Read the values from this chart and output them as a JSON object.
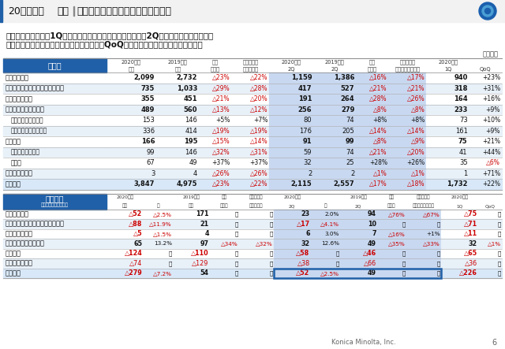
{
  "title_period": "20年度上期",
  "title_section": "業績",
  "title_sep": "｜",
  "title_topic": "事業セグメント別売上高と営業利益",
  "subtitle1": "産業用材料・機器は1Qに続き黒字、オフィスとヘルスケアは2Q黒字化。プロフェッショ",
  "subtitle2": "ナルプリントは想定通りオフィスより遅れもQoQで大幅改善。新規事業も赤字縮小。",
  "unit_label": "（億円）",
  "header_bg": "#2060a8",
  "alt_row_bg": "#e8f0f8",
  "white_row_bg": "#ffffff",
  "highlight_color": "#c8d8f0",
  "total_row_bg": "#d8e8f8",
  "sales_header": "売上高",
  "profit_header": "営業利益",
  "profit_subheader": "（右行：営業利益率）",
  "sales_col_headers_row1": [
    "2020年度",
    "2019年度",
    "前年",
    "為替影響を",
    "2020年度",
    "2019年度",
    "前年",
    "為替影響を",
    "2020年度",
    ""
  ],
  "sales_col_headers_row2": [
    "上期",
    "上期",
    "同期比",
    "除く前期比",
    "2Q",
    "2Q",
    "同期比",
    "除く前期年同期比",
    "1Q",
    "QoQ"
  ],
  "sales_row_labels": [
    "オフィス事業",
    "プロフェッショナルプリント事業",
    "ヘルスケア事業",
    "産業用材料・機器事業",
    "産業用光学システム",
    "材料・コンポーネント",
    "新規事業",
    "バイオヘルスケア",
    "その他",
    "コーポレート他",
    "全社合計"
  ],
  "sales_row_indent": [
    false,
    false,
    false,
    false,
    true,
    true,
    false,
    true,
    true,
    false,
    false
  ],
  "sales_row_bold": [
    true,
    true,
    true,
    true,
    false,
    false,
    true,
    false,
    false,
    false,
    true
  ],
  "sales_data": [
    [
      "2,099",
      "2,732",
      "△23%",
      "△22%",
      "1,159",
      "1,386",
      "△16%",
      "△17%",
      "940",
      "+23%"
    ],
    [
      "735",
      "1,033",
      "△29%",
      "△28%",
      "417",
      "527",
      "△21%",
      "△21%",
      "318",
      "+31%"
    ],
    [
      "355",
      "451",
      "△21%",
      "△20%",
      "191",
      "264",
      "△28%",
      "△26%",
      "164",
      "+16%"
    ],
    [
      "489",
      "560",
      "△13%",
      "△12%",
      "256",
      "279",
      "△8%",
      "△8%",
      "233",
      "+9%"
    ],
    [
      "153",
      "146",
      "+5%",
      "+7%",
      "80",
      "74",
      "+8%",
      "+8%",
      "73",
      "+10%"
    ],
    [
      "336",
      "414",
      "△19%",
      "△19%",
      "176",
      "205",
      "△14%",
      "△14%",
      "161",
      "+9%"
    ],
    [
      "166",
      "195",
      "△15%",
      "△14%",
      "91",
      "99",
      "△8%",
      "△9%",
      "75",
      "+21%"
    ],
    [
      "99",
      "146",
      "△32%",
      "△31%",
      "59",
      "74",
      "△21%",
      "△20%",
      "41",
      "+44%"
    ],
    [
      "67",
      "49",
      "+37%",
      "+37%",
      "32",
      "25",
      "+28%",
      "+26%",
      "35",
      "△6%"
    ],
    [
      "3",
      "4",
      "△26%",
      "△26%",
      "2",
      "2",
      "△1%",
      "△1%",
      "1",
      "+71%"
    ],
    [
      "3,847",
      "4,975",
      "△23%",
      "△22%",
      "2,115",
      "2,557",
      "△17%",
      "△18%",
      "1,732",
      "+22%"
    ]
  ],
  "profit_col_headers_row1": [
    "2020年度",
    "",
    "2019年度",
    "前年",
    "為替影響を",
    "2020年度",
    "",
    "2019年度",
    "前年",
    "為替影響を",
    "2020年度",
    ""
  ],
  "profit_col_headers_row2": [
    "上期",
    "率",
    "上期",
    "同期比",
    "除く前期比",
    "2Q",
    "率",
    "2Q",
    "同期比",
    "除く前期年同期比",
    "1Q",
    "QoQ"
  ],
  "profit_row_labels": [
    "オフィス事業",
    "プロフェッショナルプリント事業",
    "ヘルスケア事業",
    "産業用材料・機器事業",
    "新規事業",
    "コーポレート他",
    "全社合計"
  ],
  "profit_row_bold": [
    true,
    true,
    true,
    true,
    true,
    false,
    true
  ],
  "profit_data": [
    [
      "△52",
      "△2.5%",
      "171",
      "・",
      "・",
      "23",
      "2.0%",
      "94",
      "△76%",
      "△67%",
      "△75",
      "・"
    ],
    [
      "△88",
      "△11.9%",
      "21",
      "・",
      "・",
      "△17",
      "△4.1%",
      "10",
      "・",
      "・",
      "△71",
      "・"
    ],
    [
      "△5",
      "△1.5%",
      "4",
      "・",
      "・",
      "6",
      "3.0%",
      "7",
      "△16%",
      "+1%",
      "△11",
      "・"
    ],
    [
      "65",
      "13.2%",
      "97",
      "△34%",
      "△32%",
      "32",
      "12.6%",
      "49",
      "△35%",
      "△33%",
      "32",
      "△1%"
    ],
    [
      "△124",
      "－",
      "△110",
      "・",
      "・",
      "△58",
      "－",
      "△46",
      "・",
      "・",
      "△65",
      "・"
    ],
    [
      "△74",
      "－",
      "△129",
      "・",
      "・",
      "△38",
      "－",
      "△66",
      "・",
      "・",
      "△36",
      "・"
    ],
    [
      "△279",
      "△7.2%",
      "54",
      "・",
      "・",
      "△52",
      "△2.5%",
      "49",
      "・",
      "・",
      "△226",
      "・"
    ]
  ],
  "footer_text": "Konica Minolta, Inc.",
  "footer_page": "6",
  "red_text": "#cc0000",
  "black_text": "#111111",
  "gray_text": "#555555"
}
